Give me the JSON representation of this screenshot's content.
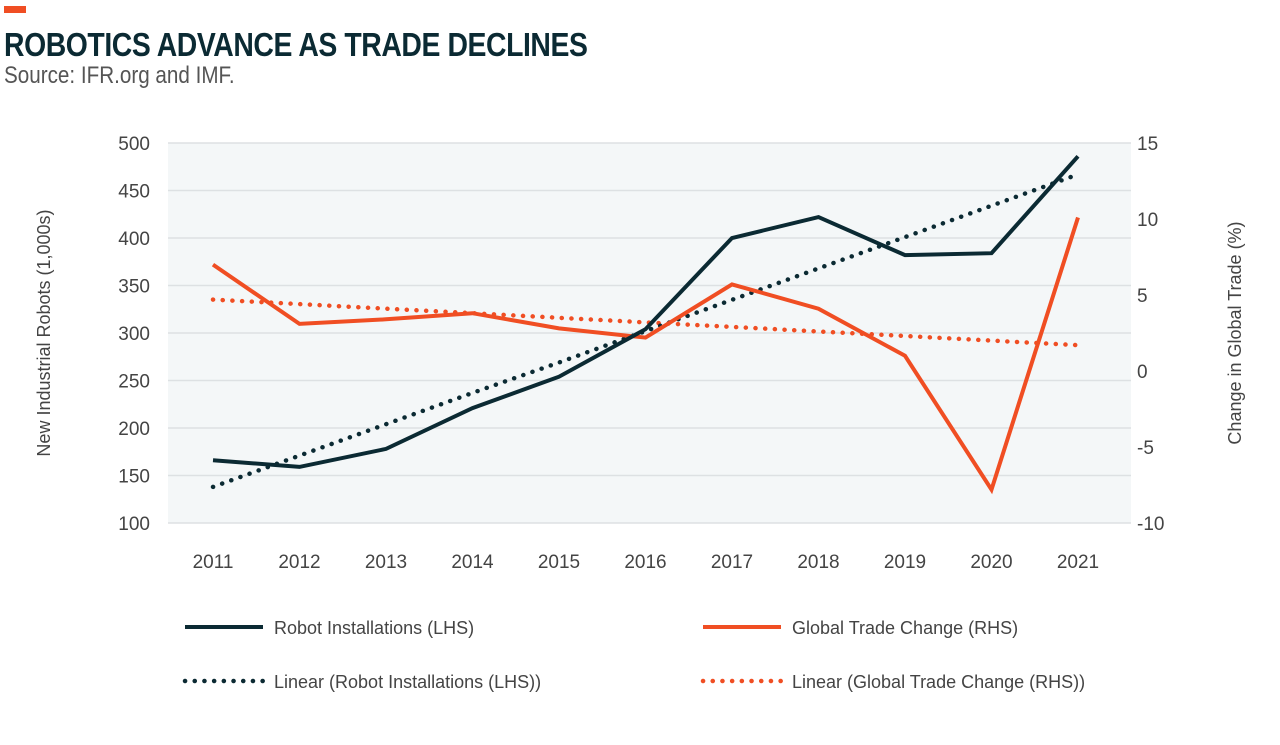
{
  "header": {
    "title": "ROBOTICS ADVANCE AS TRADE DECLINES",
    "subtitle": "Source: IFR.org and IMF."
  },
  "colors": {
    "accent": "#f04e23",
    "robot": "#0b2a33",
    "trade": "#f04e23",
    "plot_bg": "#f4f7f8",
    "grid": "#dde1e3"
  },
  "chart_data": {
    "type": "line",
    "title": "ROBOTICS ADVANCE AS TRADE DECLINES",
    "subtitle": "Source: IFR.org and IMF.",
    "x": [
      "2011",
      "2012",
      "2013",
      "2014",
      "2015",
      "2016",
      "2017",
      "2018",
      "2019",
      "2020",
      "2021"
    ],
    "xlabel": "",
    "ylabel": "New Industrial Robots (1,000s)",
    "ylabel_right": "Change in Global Trade (%)",
    "ylim": [
      100,
      500
    ],
    "ylim_right": [
      -10,
      15
    ],
    "yticks": [
      "500",
      "450",
      "400",
      "350",
      "300",
      "250",
      "200",
      "150",
      "100"
    ],
    "yticks_right": [
      "15",
      "10",
      "5",
      "0",
      "-5",
      "-10"
    ],
    "grid": true,
    "legend_position": "bottom",
    "series": [
      {
        "name": "Robot Installations (LHS)",
        "axis": "left",
        "style": "solid",
        "values": [
          166,
          159,
          178,
          221,
          254,
          304,
          400,
          422,
          382,
          384,
          486
        ]
      },
      {
        "name": "Global Trade Change (RHS)",
        "axis": "right",
        "style": "solid",
        "values": [
          7.0,
          3.1,
          3.4,
          3.8,
          2.8,
          2.2,
          5.7,
          4.1,
          1.0,
          -7.8,
          10.1
        ]
      },
      {
        "name": "Linear (Robot Installations (LHS))",
        "axis": "left",
        "style": "dotted",
        "values": [
          138,
          171,
          204,
          237,
          269,
          302,
          335,
          368,
          401,
          434,
          467
        ]
      },
      {
        "name": "Linear (Global Trade Change (RHS))",
        "axis": "right",
        "style": "dotted",
        "values": [
          4.7,
          4.4,
          4.1,
          3.8,
          3.5,
          3.2,
          2.9,
          2.6,
          2.3,
          2.0,
          1.7
        ]
      }
    ]
  }
}
